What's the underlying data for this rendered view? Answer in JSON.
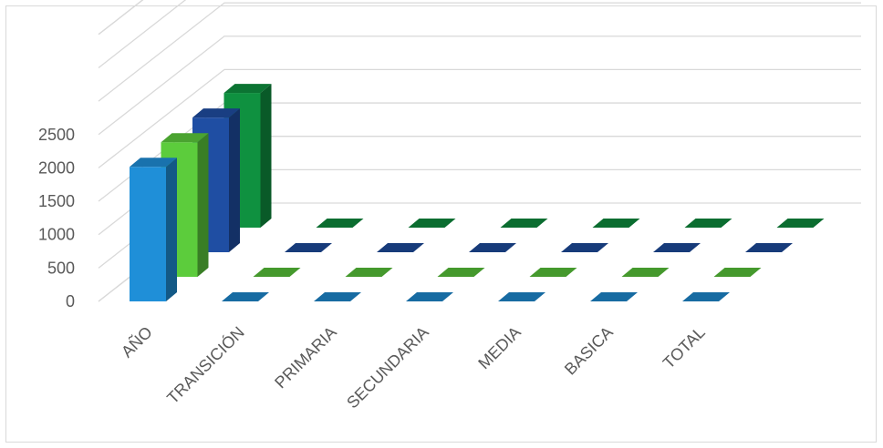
{
  "chart_data": {
    "type": "bar",
    "subtype": "3d-clustered-column",
    "title": "",
    "xlabel": "",
    "ylabel": "",
    "categories": [
      "AÑO",
      "TRANSICIÓN",
      "PRIMARIA",
      "SECUNDARIA",
      "MEDIA",
      "BASICA",
      "TOTAL"
    ],
    "y_ticks": [
      "0",
      "500",
      "1000",
      "1500",
      "2000",
      "2500"
    ],
    "ylim": [
      0,
      4000
    ],
    "grid": true,
    "legend": "none",
    "series": [
      {
        "values": [
          2015,
          0,
          0,
          0,
          0,
          0,
          0
        ],
        "color": "#1f8fd8"
      },
      {
        "values": [
          2016,
          0,
          0,
          0,
          0,
          0,
          0
        ],
        "color": "#5ccc3c"
      },
      {
        "values": [
          2017,
          0,
          0,
          0,
          0,
          0,
          0
        ],
        "color": "#1f4ea3"
      },
      {
        "values": [
          2018,
          0,
          0,
          0,
          0,
          0,
          0
        ],
        "color": "#0f9140"
      }
    ]
  }
}
